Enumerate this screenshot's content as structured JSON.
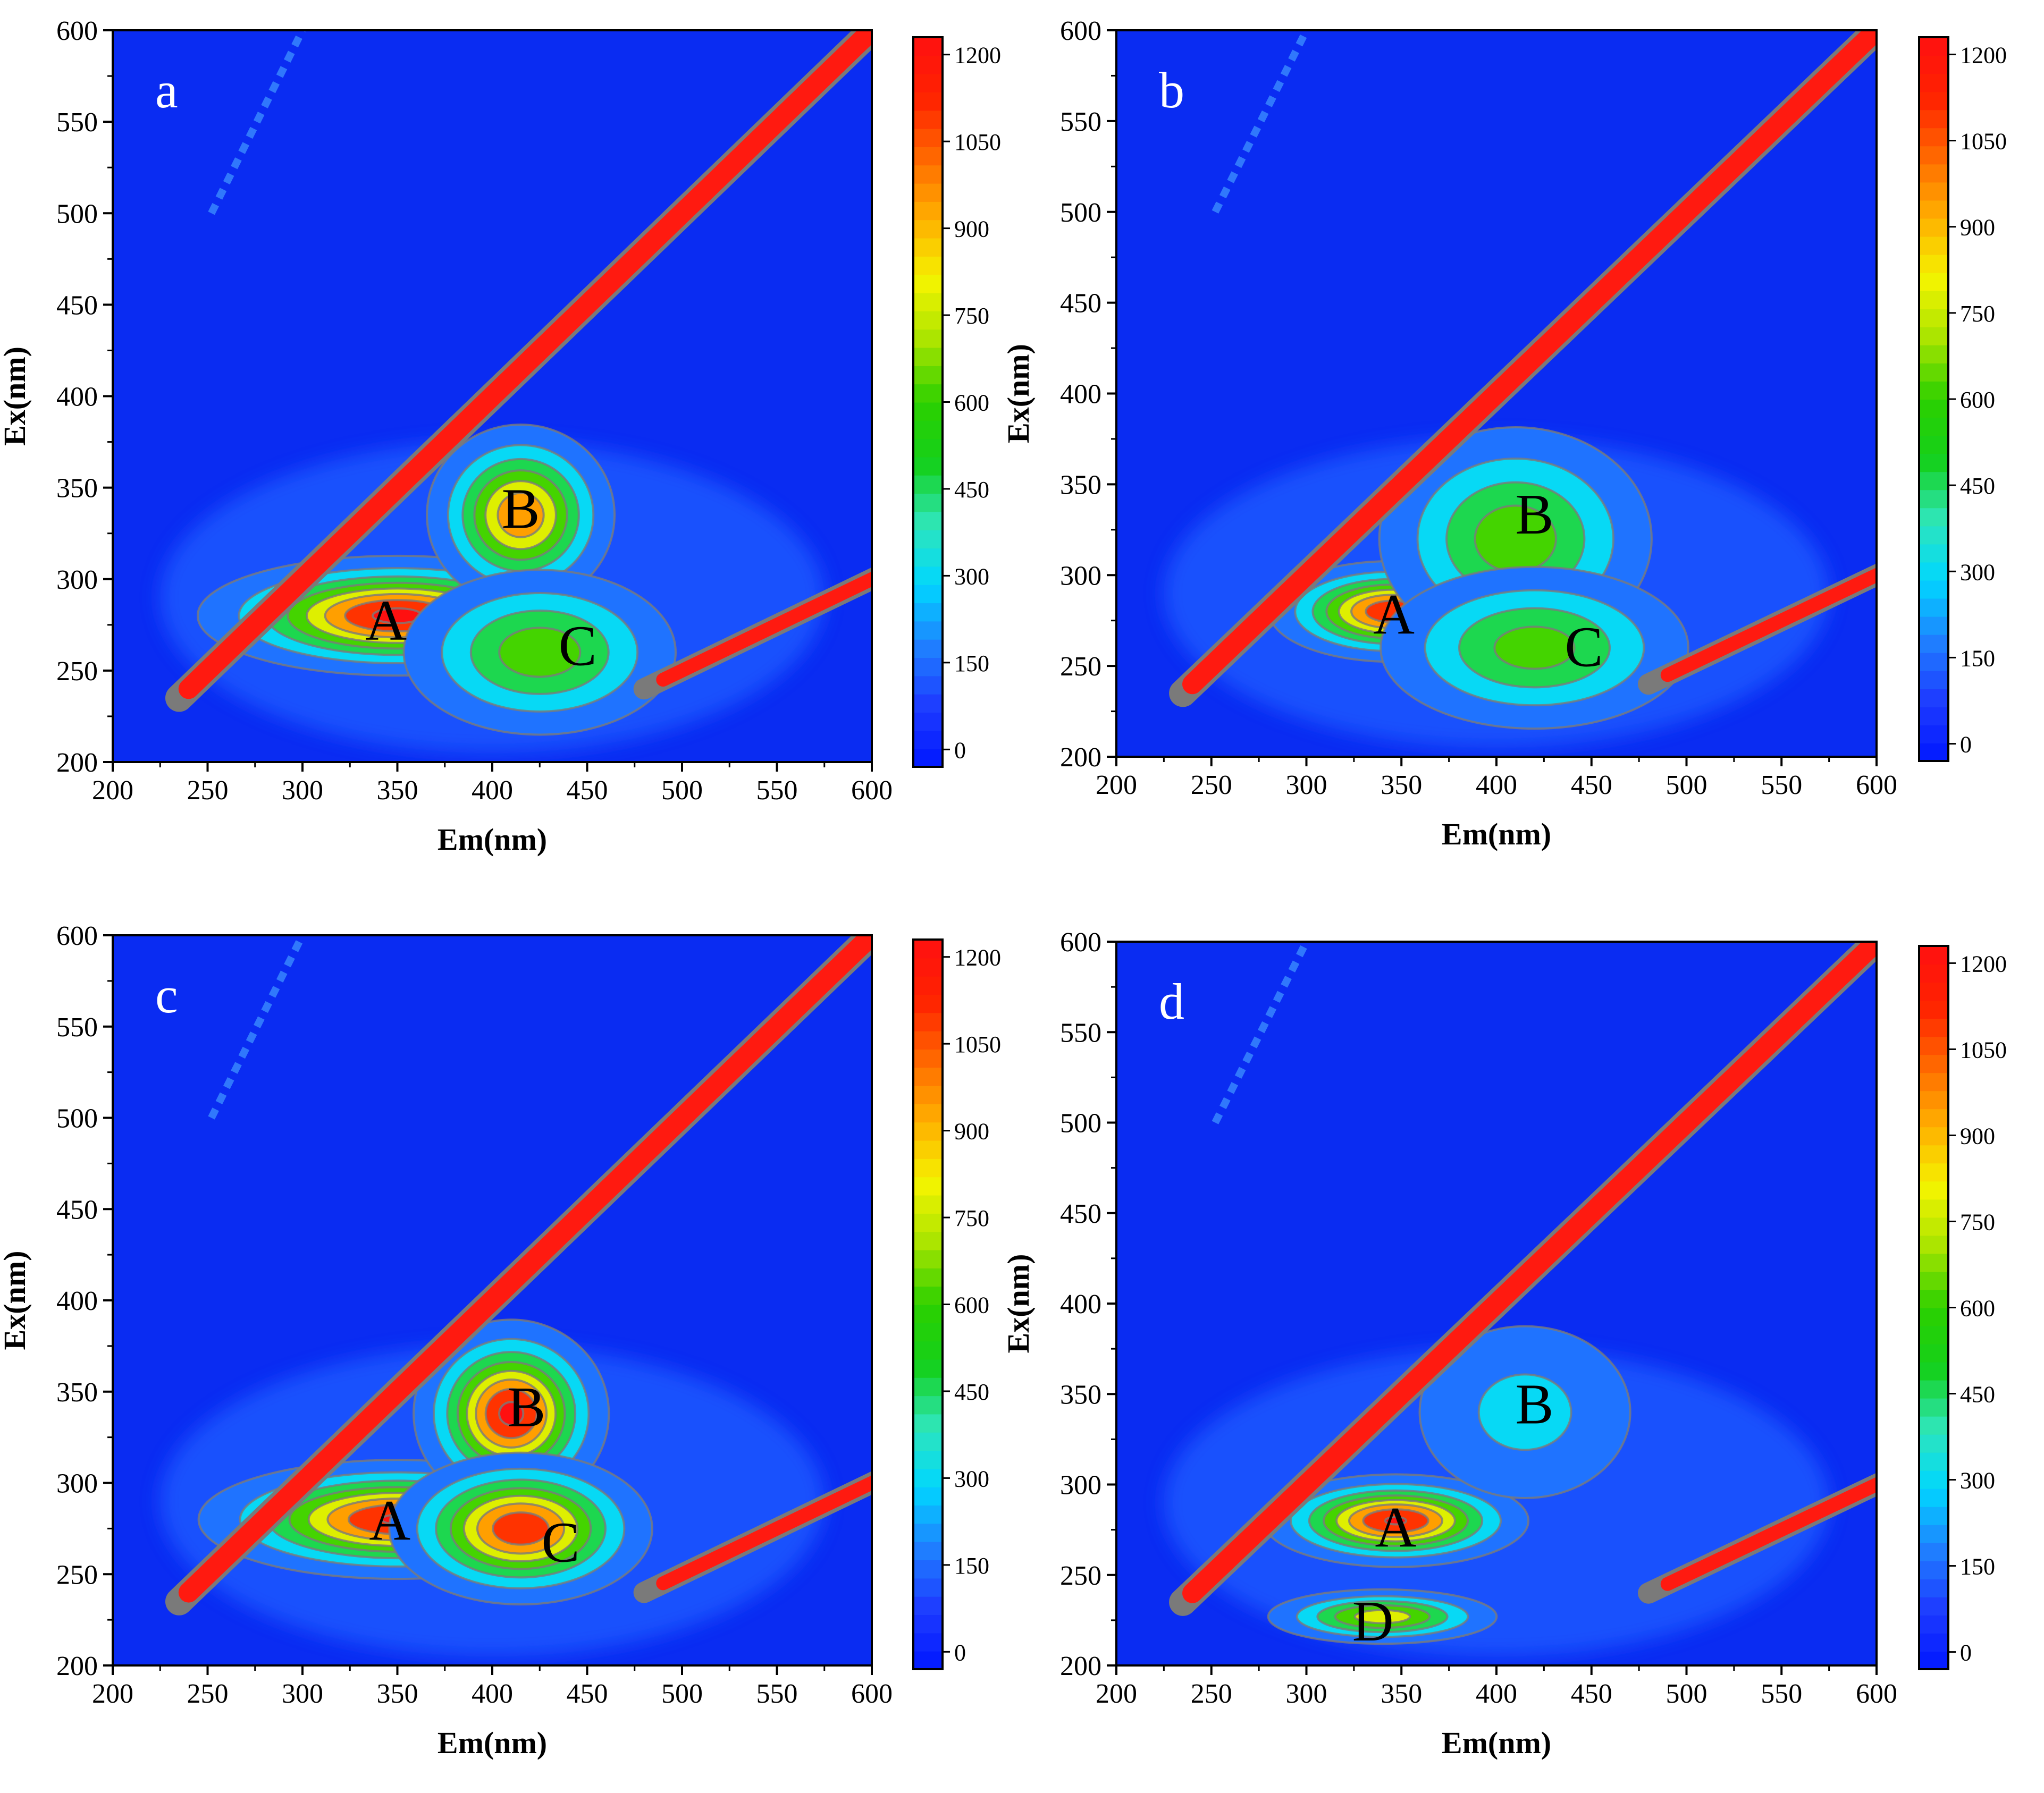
{
  "colors": {
    "background": "#0a2cf2",
    "axis": "#000000",
    "contour_line": "#7a7a7a",
    "scatter_line": "#ff1a10",
    "panel_letter": "#ffffff",
    "peak_label": "#000000",
    "colormap": [
      "#0018ff",
      "#1e3cff",
      "#1f80ff",
      "#00d7ff",
      "#2ee6b8",
      "#14d01a",
      "#2cd000",
      "#a8e400",
      "#f4f400",
      "#ffb000",
      "#ff6a00",
      "#ff2200",
      "#ff1010"
    ]
  },
  "chart_data": [
    {
      "type": "heatmap",
      "panel_label": "a",
      "xlabel": "Em(nm)",
      "ylabel": "Ex(nm)",
      "xlim": [
        200,
        600
      ],
      "ylim": [
        200,
        600
      ],
      "x_ticks": [
        "200",
        "250",
        "300",
        "350",
        "400",
        "450",
        "500",
        "550",
        "600"
      ],
      "y_ticks": [
        "200",
        "250",
        "300",
        "350",
        "400",
        "450",
        "500",
        "550",
        "600"
      ],
      "colorbar": {
        "range": [
          -30,
          1230
        ],
        "ticks": [
          "0",
          "150",
          "300",
          "450",
          "600",
          "750",
          "900",
          "1050",
          "1200"
        ]
      },
      "peaks": [
        {
          "label": "A",
          "em": 350,
          "ex": 280,
          "intensity": 1230,
          "spread_em": 45,
          "spread_ex": 14
        },
        {
          "label": "B",
          "em": 415,
          "ex": 335,
          "intensity": 1000,
          "spread_em": 22,
          "spread_ex": 22
        },
        {
          "label": "C",
          "em": 425,
          "ex": 260,
          "intensity": 650,
          "spread_em": 35,
          "spread_ex": 22
        }
      ],
      "annotations": [
        {
          "text": "A",
          "em": 344,
          "ex": 278
        },
        {
          "text": "B",
          "em": 415,
          "ex": 339
        },
        {
          "text": "C",
          "em": 445,
          "ex": 264
        }
      ]
    },
    {
      "type": "heatmap",
      "panel_label": "b",
      "xlabel": "Em(nm)",
      "ylabel": "Ex(nm)",
      "xlim": [
        200,
        600
      ],
      "ylim": [
        200,
        600
      ],
      "x_ticks": [
        "200",
        "250",
        "300",
        "350",
        "400",
        "450",
        "500",
        "550",
        "600"
      ],
      "y_ticks": [
        "200",
        "250",
        "300",
        "350",
        "400",
        "450",
        "500",
        "550",
        "600"
      ],
      "colorbar": {
        "range": [
          -30,
          1230
        ],
        "ticks": [
          "0",
          "150",
          "300",
          "450",
          "600",
          "750",
          "900",
          "1050",
          "1200"
        ]
      },
      "peaks": [
        {
          "label": "A",
          "em": 345,
          "ex": 280,
          "intensity": 1150,
          "spread_em": 28,
          "spread_ex": 12
        },
        {
          "label": "B",
          "em": 410,
          "ex": 320,
          "intensity": 650,
          "spread_em": 35,
          "spread_ex": 30
        },
        {
          "label": "C",
          "em": 420,
          "ex": 260,
          "intensity": 620,
          "spread_em": 40,
          "spread_ex": 22
        }
      ],
      "annotations": [
        {
          "text": "A",
          "em": 346,
          "ex": 279
        },
        {
          "text": "B",
          "em": 420,
          "ex": 334
        },
        {
          "text": "C",
          "em": 446,
          "ex": 261
        }
      ]
    },
    {
      "type": "heatmap",
      "panel_label": "c",
      "xlabel": "Em(nm)",
      "ylabel": "Ex(nm)",
      "xlim": [
        200,
        600
      ],
      "ylim": [
        200,
        600
      ],
      "x_ticks": [
        "200",
        "250",
        "300",
        "350",
        "400",
        "450",
        "500",
        "550",
        "600"
      ],
      "y_ticks": [
        "200",
        "250",
        "300",
        "350",
        "400",
        "450",
        "500",
        "550",
        "600"
      ],
      "colorbar": {
        "range": [
          -30,
          1230
        ],
        "ticks": [
          "0",
          "150",
          "300",
          "450",
          "600",
          "750",
          "900",
          "1050",
          "1200"
        ]
      },
      "peaks": [
        {
          "label": "A",
          "em": 350,
          "ex": 280,
          "intensity": 1200,
          "spread_em": 45,
          "spread_ex": 14
        },
        {
          "label": "B",
          "em": 410,
          "ex": 338,
          "intensity": 1230,
          "spread_em": 22,
          "spread_ex": 22
        },
        {
          "label": "C",
          "em": 415,
          "ex": 275,
          "intensity": 1150,
          "spread_em": 30,
          "spread_ex": 18
        }
      ],
      "annotations": [
        {
          "text": "A",
          "em": 346,
          "ex": 280
        },
        {
          "text": "B",
          "em": 418,
          "ex": 342
        },
        {
          "text": "C",
          "em": 436,
          "ex": 268
        }
      ]
    },
    {
      "type": "heatmap",
      "panel_label": "d",
      "xlabel": "Em(nm)",
      "ylabel": "Ex(nm)",
      "xlim": [
        200,
        600
      ],
      "ylim": [
        200,
        600
      ],
      "x_ticks": [
        "200",
        "250",
        "300",
        "350",
        "400",
        "450",
        "500",
        "550",
        "600"
      ],
      "y_ticks": [
        "200",
        "250",
        "300",
        "350",
        "400",
        "450",
        "500",
        "550",
        "600"
      ],
      "colorbar": {
        "range": [
          -30,
          1230
        ],
        "ticks": [
          "0",
          "150",
          "300",
          "450",
          "600",
          "750",
          "900",
          "1050",
          "1200"
        ]
      },
      "peaks": [
        {
          "label": "A",
          "em": 347,
          "ex": 280,
          "intensity": 1200,
          "spread_em": 30,
          "spread_ex": 11
        },
        {
          "label": "B",
          "em": 415,
          "ex": 340,
          "intensity": 280,
          "spread_em": 35,
          "spread_ex": 30
        },
        {
          "label": "D",
          "em": 340,
          "ex": 227,
          "intensity": 800,
          "spread_em": 28,
          "spread_ex": 7
        }
      ],
      "annotations": [
        {
          "text": "A",
          "em": 347,
          "ex": 277
        },
        {
          "text": "B",
          "em": 420,
          "ex": 345
        },
        {
          "text": "D",
          "em": 335,
          "ex": 225
        }
      ]
    }
  ]
}
